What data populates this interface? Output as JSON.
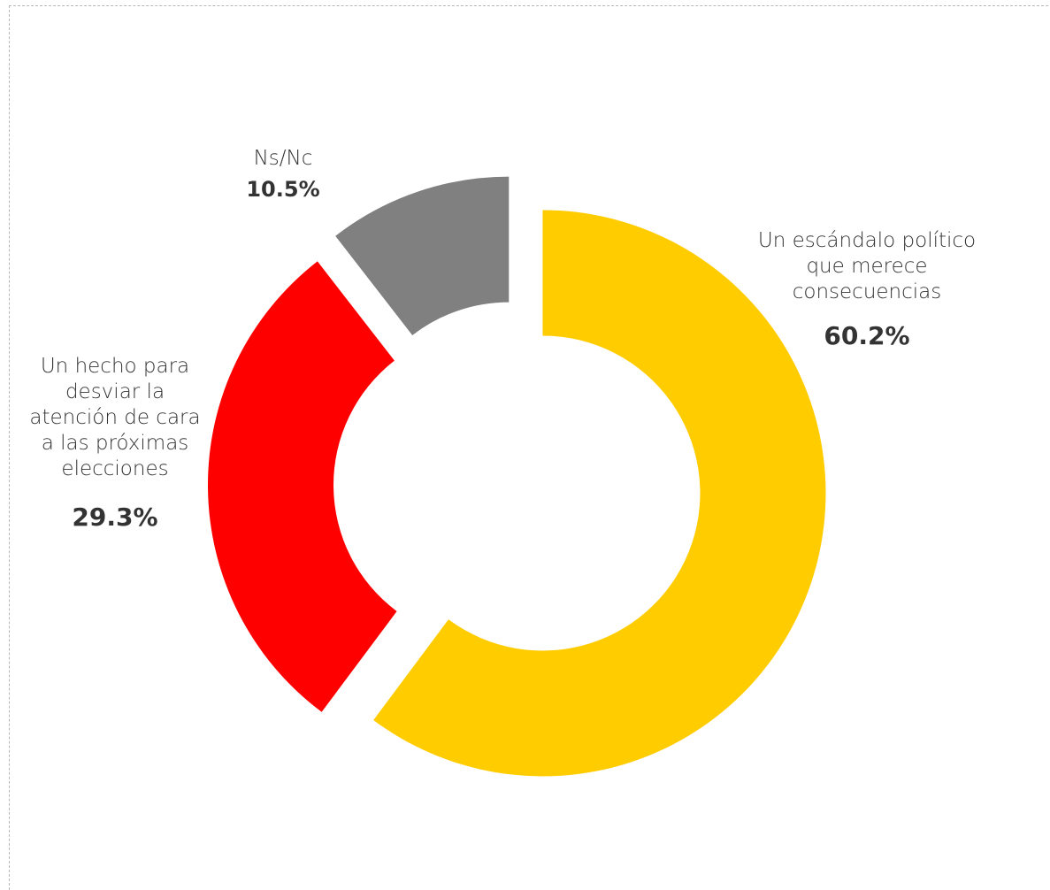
{
  "chart_data": {
    "type": "pie",
    "variant": "donut",
    "slices": [
      {
        "label": "Un escándalo político que merece consecuencias",
        "value": 60.2,
        "display": "60.2%",
        "color": "#FFCC00"
      },
      {
        "label": "Un hecho para desviar la atención de cara a las próximas elecciones",
        "value": 29.3,
        "display": "29.3%",
        "color": "#FF0000"
      },
      {
        "label": "Ns/Nc",
        "value": 10.5,
        "display": "10.5%",
        "color": "#808080"
      }
    ],
    "labels": {
      "a_lines": [
        "Un escándalo político",
        "que merece",
        "consecuencias"
      ],
      "b_lines": [
        "Un hecho para",
        "desviar la",
        "atención de cara",
        "a las próximas",
        "elecciones"
      ],
      "c_lines": [
        "Ns/Nc"
      ]
    },
    "legend": "none",
    "start_angle": "top",
    "direction": "clockwise",
    "exploded": true
  }
}
